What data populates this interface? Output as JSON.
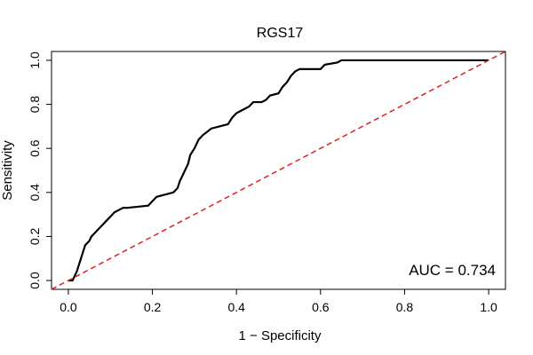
{
  "chart_data": {
    "type": "line",
    "title": "RGS17",
    "xlabel": "1 − Specificity",
    "ylabel": "Sensitivity",
    "xlim": [
      -0.04,
      1.04
    ],
    "ylim": [
      -0.04,
      1.04
    ],
    "x_ticks": [
      0.0,
      0.2,
      0.4,
      0.6,
      0.8,
      1.0
    ],
    "x_tick_labels": [
      "0.0",
      "0.2",
      "0.4",
      "0.6",
      "0.8",
      "1.0"
    ],
    "y_ticks": [
      0.0,
      0.2,
      0.4,
      0.6,
      0.8,
      1.0
    ],
    "y_tick_labels": [
      "0.0",
      "0.2",
      "0.4",
      "0.6",
      "0.8",
      "1.0"
    ],
    "annotation": "AUC = 0.734",
    "grid": false,
    "series": [
      {
        "style": "solid",
        "color": "#000000",
        "x": [
          0.0,
          0.01,
          0.02,
          0.025,
          0.03,
          0.035,
          0.04,
          0.05,
          0.055,
          0.06,
          0.065,
          0.07,
          0.08,
          0.09,
          0.1,
          0.11,
          0.13,
          0.14,
          0.19,
          0.21,
          0.25,
          0.26,
          0.265,
          0.27,
          0.275,
          0.28,
          0.285,
          0.29,
          0.3,
          0.31,
          0.32,
          0.34,
          0.38,
          0.39,
          0.4,
          0.41,
          0.42,
          0.43,
          0.44,
          0.46,
          0.47,
          0.48,
          0.5,
          0.51,
          0.52,
          0.53,
          0.54,
          0.55,
          0.6,
          0.61,
          0.64,
          0.65,
          0.75,
          0.85,
          1.0
        ],
        "y": [
          0.0,
          0.0,
          0.04,
          0.07,
          0.1,
          0.13,
          0.16,
          0.18,
          0.2,
          0.21,
          0.22,
          0.23,
          0.25,
          0.27,
          0.29,
          0.31,
          0.33,
          0.33,
          0.34,
          0.38,
          0.4,
          0.42,
          0.45,
          0.47,
          0.49,
          0.51,
          0.53,
          0.57,
          0.6,
          0.64,
          0.66,
          0.69,
          0.71,
          0.74,
          0.76,
          0.77,
          0.78,
          0.79,
          0.81,
          0.81,
          0.82,
          0.84,
          0.85,
          0.88,
          0.9,
          0.93,
          0.95,
          0.96,
          0.96,
          0.98,
          0.99,
          1.0,
          1.0,
          1.0,
          1.0
        ]
      },
      {
        "style": "dashed",
        "color": "#dd2222",
        "x": [
          0.0,
          1.0
        ],
        "y": [
          0.0,
          1.0
        ]
      }
    ]
  }
}
